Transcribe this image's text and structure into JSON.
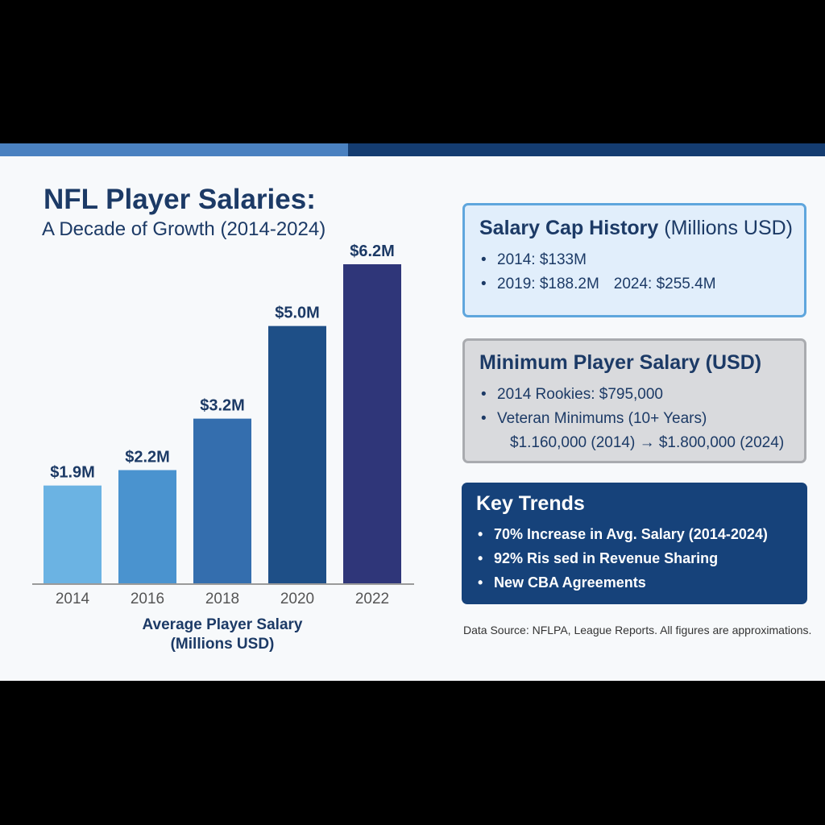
{
  "colors": {
    "topbar_left": "#4a81c0",
    "topbar_right": "#143c70",
    "bar_colors": [
      "#6bb3e3",
      "#4a93cf",
      "#346eae",
      "#1e4f87",
      "#2f3679"
    ],
    "text_dark": "#1c3a66"
  },
  "title": "NFL Player Salaries:",
  "subtitle": "A Decade of Growth (2014-2024)",
  "chart_data": {
    "type": "bar",
    "categories": [
      "2014",
      "2016",
      "2018",
      "2020",
      "2022"
    ],
    "values": [
      1.9,
      2.2,
      3.2,
      5.0,
      6.2
    ],
    "data_labels": [
      "$1.9M",
      "$2.2M",
      "$3.2M",
      "$5.0M",
      "$6.2M"
    ],
    "xlabel": "Average Player Salary (Millions USD)",
    "ylabel": "",
    "ylim": [
      0,
      6.2
    ],
    "grid": false
  },
  "chart_caption": {
    "line1": "Average Player Salary",
    "line2": "(Millions USD)"
  },
  "salary_cap": {
    "title_bold": "Salary Cap History",
    "title_light": "(Millions USD)",
    "item1": "2014: $133M",
    "item2a": "2019: $188.2M",
    "item2b": "2024: $255.4M"
  },
  "min_salary": {
    "title": "Minimum Player Salary (USD)",
    "item1": "2014 Rookies: $795,000",
    "item2_line1": "Veteran Minimums (10+ Years)",
    "item2_line2": "$1.160,000 (2014) → $1.800,000 (2024)"
  },
  "key_trends": {
    "title": "Key Trends",
    "items": [
      "70% Increase in Avg. Salary (2014-2024)",
      "92% Ris sed in Revenue Sharing",
      "New CBA Agreements"
    ]
  },
  "source": "Data Source: NFLPA, League Reports. All figures are approximations."
}
